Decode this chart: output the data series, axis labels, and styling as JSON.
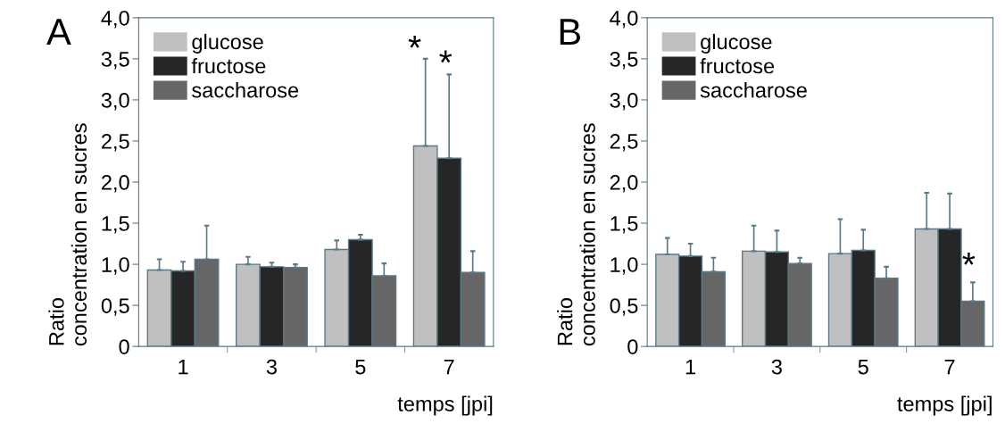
{
  "chart_data": [
    {
      "type": "bar",
      "title": "A",
      "ylabel": "Ratio\nconcentration en sucres",
      "xlabel": "temps [jpi]",
      "categories": [
        "1",
        "3",
        "5",
        "7"
      ],
      "series": [
        {
          "name": "glucose",
          "color": "#c0c0c0",
          "values": [
            0.93,
            1.0,
            1.18,
            2.44
          ],
          "errors": [
            [
              0.93,
              1.06
            ],
            [
              1.0,
              1.09
            ],
            [
              1.18,
              1.29
            ],
            [
              2.44,
              3.5
            ]
          ]
        },
        {
          "name": "fructose",
          "color": "#262626",
          "values": [
            0.92,
            0.97,
            1.3,
            2.29
          ],
          "errors": [
            [
              0.92,
              1.03
            ],
            [
              0.97,
              1.02
            ],
            [
              1.3,
              1.36
            ],
            [
              2.29,
              3.31
            ]
          ]
        },
        {
          "name": "saccharose",
          "color": "#666666",
          "values": [
            1.06,
            0.96,
            0.86,
            0.9
          ],
          "errors": [
            [
              1.06,
              1.47
            ],
            [
              0.96,
              1.0
            ],
            [
              0.86,
              1.01
            ],
            [
              0.9,
              1.16
            ]
          ]
        }
      ],
      "ylim": [
        0,
        4
      ],
      "yticks": [
        0,
        {
          "value": 0.5,
          "label": "0,5"
        },
        {
          "value": 1,
          "label": "1,0"
        },
        {
          "value": 1.5,
          "label": "1,5"
        },
        {
          "value": 2,
          "label": "2,0"
        },
        {
          "value": 2.5,
          "label": "2,5"
        },
        {
          "value": 3,
          "label": "3,0"
        },
        {
          "value": 3.5,
          "label": "3,5"
        },
        {
          "value": 4,
          "label": "4,0"
        }
      ],
      "annotations": [
        "*",
        "*"
      ],
      "legend": "top left",
      "grid": false
    },
    {
      "type": "bar",
      "title": "B",
      "ylabel": "Ratio\nconcentration en sucres",
      "xlabel": "temps [jpi]",
      "categories": [
        "1",
        "3",
        "5",
        "7"
      ],
      "series": [
        {
          "name": "glucose",
          "color": "#c0c0c0",
          "values": [
            1.12,
            1.16,
            1.13,
            1.43
          ],
          "errors": [
            [
              1.12,
              1.32
            ],
            [
              1.16,
              1.47
            ],
            [
              1.13,
              1.55
            ],
            [
              1.43,
              1.87
            ]
          ]
        },
        {
          "name": "fructose",
          "color": "#262626",
          "values": [
            1.1,
            1.15,
            1.17,
            1.43
          ],
          "errors": [
            [
              1.1,
              1.25
            ],
            [
              1.15,
              1.41
            ],
            [
              1.17,
              1.42
            ],
            [
              1.43,
              1.86
            ]
          ]
        },
        {
          "name": "saccharose",
          "color": "#666666",
          "values": [
            0.91,
            1.01,
            0.83,
            0.55
          ],
          "errors": [
            [
              0.91,
              1.08
            ],
            [
              1.01,
              1.08
            ],
            [
              0.83,
              0.97
            ],
            [
              0.55,
              0.78
            ]
          ]
        }
      ],
      "ylim": [
        0,
        4
      ],
      "yticks": [
        0,
        {
          "value": 0.5,
          "label": "0,5"
        },
        {
          "value": 1,
          "label": "1,0"
        },
        {
          "value": 1.5,
          "label": "1,5"
        },
        {
          "value": 2,
          "label": "2,0"
        },
        {
          "value": 2.5,
          "label": "2,5"
        },
        {
          "value": 3,
          "label": "3,0"
        },
        {
          "value": 3.5,
          "label": "3,5"
        },
        {
          "value": 4,
          "label": "4,0"
        }
      ],
      "annotations": [
        "*"
      ],
      "legend": "top left",
      "grid": false
    }
  ]
}
